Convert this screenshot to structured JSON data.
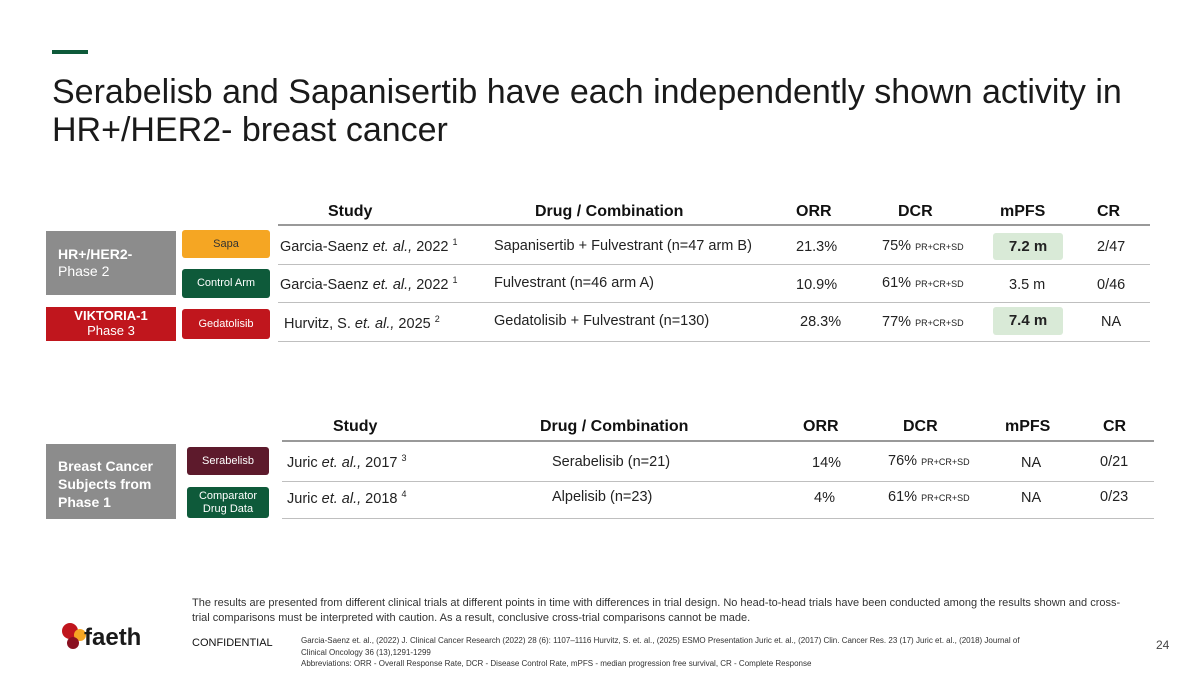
{
  "title": "Serabelisb and Sapanisertib have each independently shown activity in HR+/HER2- breast cancer",
  "colors": {
    "accent_green": "#0e5a3a",
    "sapa": "#f5a623",
    "red": "#c0161d",
    "serabelisib": "#5d1a2c",
    "highlight": "#d9ead7"
  },
  "table1": {
    "headers": {
      "study": "Study",
      "drug": "Drug / Combination",
      "orr": "ORR",
      "dcr": "DCR",
      "mpfs": "mPFS",
      "cr": "CR"
    },
    "group1": {
      "line1": "HR+/HER2-",
      "line2": "Phase 2"
    },
    "group2": {
      "line1": "VIKTORIA-1",
      "line2": "Phase 3"
    },
    "rows": [
      {
        "tag": "Sapa",
        "study_pre": "Garcia-Saenz ",
        "study_em": "et. al.,",
        "study_post": " 2022 ",
        "ref": "1",
        "drug": "Sapanisertib + Fulvestrant (n=47 arm B)",
        "orr": "21.3%",
        "dcr": "75%",
        "dcr_sub": "PR+CR+SD",
        "mpfs": "7.2 m",
        "cr": "2/47"
      },
      {
        "tag": "Control Arm",
        "study_pre": "Garcia-Saenz ",
        "study_em": "et. al.,",
        "study_post": " 2022 ",
        "ref": "1",
        "drug": "Fulvestrant (n=46 arm A)",
        "orr": "10.9%",
        "dcr": "61%",
        "dcr_sub": "PR+CR+SD",
        "mpfs": "3.5 m",
        "cr": "0/46"
      },
      {
        "tag": "Gedatolisib",
        "study_pre": "Hurvitz, S. ",
        "study_em": "et. al.,",
        "study_post": " 2025 ",
        "ref": "2",
        "drug": "Gedatolisib + Fulvestrant (n=130)",
        "orr": "28.3%",
        "dcr": "77%",
        "dcr_sub": "PR+CR+SD",
        "mpfs": "7.4 m",
        "cr": "NA"
      }
    ]
  },
  "table2": {
    "headers": {
      "study": "Study",
      "drug": "Drug / Combination",
      "orr": "ORR",
      "dcr": "DCR",
      "mpfs": "mPFS",
      "cr": "CR"
    },
    "group": {
      "line1": "Breast Cancer",
      "line2": "Subjects from",
      "line3": "Phase 1"
    },
    "rows": [
      {
        "tag": "Serabelisb",
        "study_pre": "Juric ",
        "study_em": "et. al.,",
        "study_post": " 2017 ",
        "ref": "3",
        "drug": "Serabelisib (n=21)",
        "orr": "14%",
        "dcr": "76%",
        "dcr_sub": "PR+CR+SD",
        "mpfs": "NA",
        "cr": "0/21"
      },
      {
        "tag_l1": "Comparator",
        "tag_l2": "Drug Data",
        "study_pre": "Juric ",
        "study_em": "et. al.,",
        "study_post": " 2018 ",
        "ref": "4",
        "drug": "Alpelisib (n=23)",
        "orr": "4%",
        "dcr": "61%",
        "dcr_sub": "PR+CR+SD",
        "mpfs": "NA",
        "cr": "0/23"
      }
    ]
  },
  "footer": {
    "disclaimer": "The results are presented from different clinical trials at different points in time with differences in trial design. No head-to-head trials have been conducted among the results shown and cross-trial comparisons must be interpreted with caution. As a result, conclusive cross-trial comparisons cannot be made.",
    "refs_line1": "Garcia-Saenz et. al., (2022) J. Clinical Cancer Research (2022) 28 (6): 1107–1116  Hurvitz, S. et. al., (2025) ESMO Presentation  Juric et. al., (2017) Clin. Cancer Res. 23 (17)  Juric et. al., (2018) Journal of",
    "refs_line2": "Clinical Oncology 36 (13),1291-1299",
    "abbreviations": "Abbreviations: ORR - Overall Response Rate, DCR - Disease Control Rate, mPFS - median progression free survival, CR - Complete Response",
    "confidential": "CONFIDENTIAL",
    "page": "24",
    "logo": "faeth"
  }
}
